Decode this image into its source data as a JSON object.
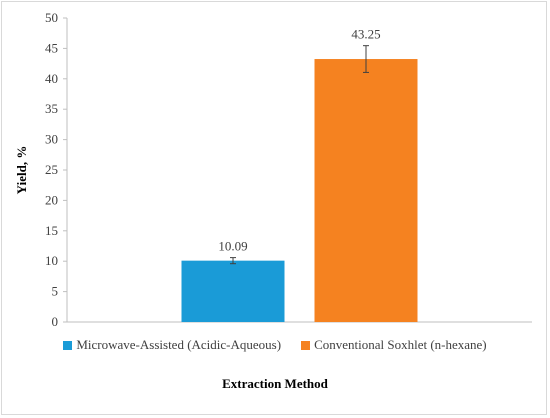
{
  "chart_data": {
    "type": "bar",
    "title": "",
    "xlabel": "Extraction Method",
    "ylabel": "Yield, %",
    "ylim": [
      0,
      50
    ],
    "yticks": [
      0,
      5,
      10,
      15,
      20,
      25,
      30,
      35,
      40,
      45,
      50
    ],
    "grid": false,
    "legend_position": "bottom",
    "series": [
      {
        "name": "Microwave-Assisted (Acidic-Aqueous)",
        "value": 10.09,
        "value_label": "10.09",
        "error": 0.5,
        "color": "#1a9bd7"
      },
      {
        "name": "Conventional Soxhlet (n-hexane)",
        "value": 43.25,
        "value_label": "43.25",
        "error": 2.2,
        "color": "#f58220"
      }
    ]
  }
}
